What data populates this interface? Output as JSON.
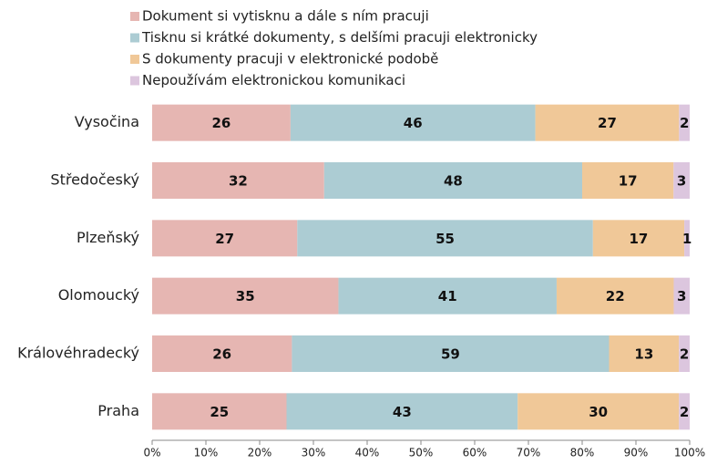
{
  "chart_data": {
    "type": "bar",
    "orientation": "horizontal",
    "stacking": "percent",
    "categories": [
      "Vysočina",
      "Středočeský",
      "Plzeňský",
      "Olomoucký",
      "Královéhradecký",
      "Praha"
    ],
    "series": [
      {
        "name": "Dokument si vytisknu a dále s ním pracuji",
        "color": "#e6b6b2",
        "values": [
          26,
          32,
          27,
          35,
          26,
          25
        ]
      },
      {
        "name": "Tisknu si krátké dokumenty, s delšími pracuji elektronicky",
        "color": "#acccd3",
        "values": [
          46,
          48,
          55,
          41,
          59,
          43
        ]
      },
      {
        "name": "S dokumenty pracuji v elektronické podobě",
        "color": "#f0c898",
        "values": [
          27,
          17,
          17,
          22,
          13,
          30
        ]
      },
      {
        "name": "Nepoužívám elektronickou komunikaci",
        "color": "#dcc6de",
        "values": [
          2,
          3,
          1,
          3,
          2,
          2
        ]
      }
    ],
    "xlim": [
      0,
      100
    ],
    "xticks": [
      {
        "value": 0,
        "label": "0%"
      },
      {
        "value": 10,
        "label": "10%"
      },
      {
        "value": 20,
        "label": "20%"
      },
      {
        "value": 30,
        "label": "30%"
      },
      {
        "value": 40,
        "label": "40%"
      },
      {
        "value": 50,
        "label": "50%"
      },
      {
        "value": 60,
        "label": "60%"
      },
      {
        "value": 70,
        "label": "70%"
      },
      {
        "value": 80,
        "label": "80%"
      },
      {
        "value": 90,
        "label": "90%"
      },
      {
        "value": 100,
        "label": "100%"
      }
    ],
    "legend": "top"
  }
}
